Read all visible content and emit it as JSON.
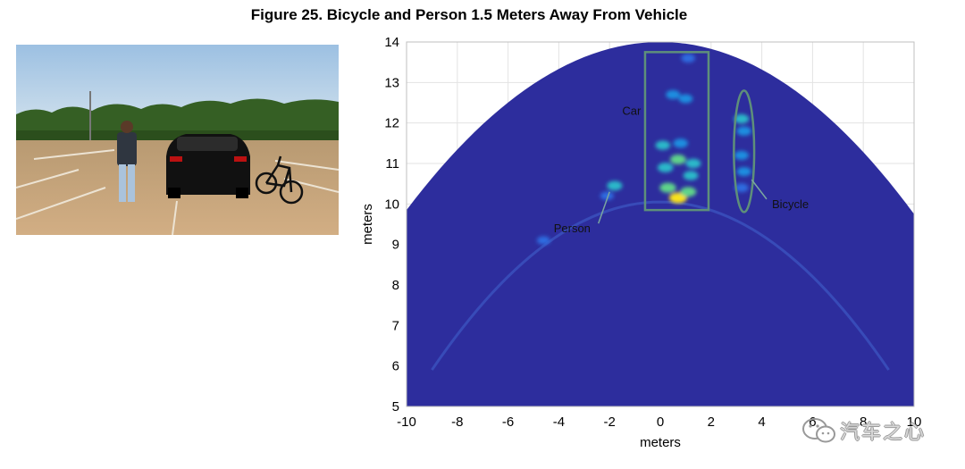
{
  "figure_title": "Figure 25. Bicycle and Person 1.5 Meters Away From Vehicle",
  "photo": {
    "description_icon": "parking-lot-photo",
    "colors": {
      "sky": "#aecbe6",
      "trees": "#2f5a1f",
      "ground": "#c7a47a",
      "car": "#121212"
    }
  },
  "watermark": {
    "icon": "wechat-icon",
    "text": "汽车之心"
  },
  "chart_data": {
    "type": "heatmap",
    "title": "",
    "xlabel": "meters",
    "ylabel": "meters",
    "xlim": [
      -10,
      10
    ],
    "ylim": [
      5,
      14
    ],
    "xticks": [
      -10,
      -8,
      -6,
      -4,
      -2,
      0,
      2,
      4,
      6,
      8,
      10
    ],
    "yticks": [
      5,
      6,
      7,
      8,
      9,
      10,
      11,
      12,
      13,
      14
    ],
    "grid": true,
    "colormap": "parula",
    "background_color": "#2d2d9d",
    "fov_boundary": {
      "apex": [
        0,
        14
      ],
      "edge_points": [
        [
          -10,
          9.85
        ],
        [
          10,
          9.75
        ]
      ]
    },
    "annotations": [
      {
        "label": "Car",
        "box": {
          "x": [
            -0.6,
            1.9
          ],
          "y": [
            9.85,
            13.75
          ]
        },
        "text_pos": [
          -1.5,
          12.2
        ]
      },
      {
        "label": "Bicycle",
        "ellipse": {
          "cx": 3.3,
          "cy": 11.3,
          "rx": 0.4,
          "ry": 1.5
        },
        "text_pos": [
          4.4,
          9.9
        ],
        "arrow_to": [
          3.6,
          10.6
        ]
      },
      {
        "label": "Person",
        "text_pos": [
          -4.2,
          9.3
        ],
        "arrow_to": [
          -2.0,
          10.3
        ]
      }
    ],
    "intensity_points": [
      {
        "x": 0.7,
        "y": 10.15,
        "v": 1.0
      },
      {
        "x": 0.3,
        "y": 10.4,
        "v": 0.8
      },
      {
        "x": 1.1,
        "y": 10.3,
        "v": 0.75
      },
      {
        "x": 0.2,
        "y": 10.9,
        "v": 0.7
      },
      {
        "x": 0.7,
        "y": 11.1,
        "v": 0.72
      },
      {
        "x": 1.3,
        "y": 11.0,
        "v": 0.62
      },
      {
        "x": 0.1,
        "y": 11.45,
        "v": 0.58
      },
      {
        "x": 0.8,
        "y": 11.5,
        "v": 0.55
      },
      {
        "x": 1.2,
        "y": 10.7,
        "v": 0.6
      },
      {
        "x": 0.5,
        "y": 12.7,
        "v": 0.5
      },
      {
        "x": 1.0,
        "y": 12.6,
        "v": 0.48
      },
      {
        "x": 1.1,
        "y": 13.6,
        "v": 0.45
      },
      {
        "x": 3.2,
        "y": 12.1,
        "v": 0.6
      },
      {
        "x": 3.3,
        "y": 11.8,
        "v": 0.55
      },
      {
        "x": 3.2,
        "y": 11.2,
        "v": 0.52
      },
      {
        "x": 3.3,
        "y": 10.8,
        "v": 0.5
      },
      {
        "x": 3.2,
        "y": 10.4,
        "v": 0.45
      },
      {
        "x": -1.8,
        "y": 10.45,
        "v": 0.65
      },
      {
        "x": -2.1,
        "y": 10.2,
        "v": 0.4
      },
      {
        "x": -4.6,
        "y": 9.1,
        "v": 0.35
      }
    ]
  }
}
